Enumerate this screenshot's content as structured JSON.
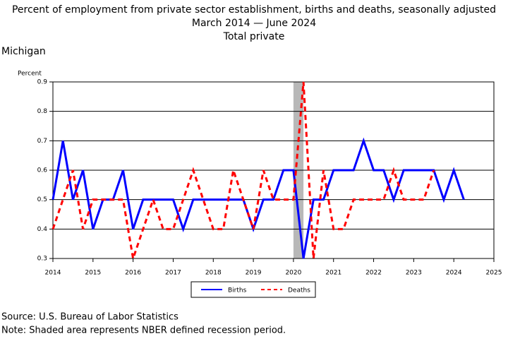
{
  "chart_data": {
    "type": "line",
    "title": [
      "Percent of employment from private sector establishment, births and deaths, seasonally adjusted",
      "March 2014 — June 2024",
      "Total private"
    ],
    "region": "Michigan",
    "ylabel": "Percent",
    "x": [
      2014,
      2014.25,
      2014.5,
      2014.75,
      2015,
      2015.25,
      2015.5,
      2015.75,
      2016,
      2016.25,
      2016.5,
      2016.75,
      2017,
      2017.25,
      2017.5,
      2017.75,
      2018,
      2018.25,
      2018.5,
      2018.75,
      2019,
      2019.25,
      2019.5,
      2019.75,
      2020,
      2020.25,
      2020.5,
      2020.75,
      2021,
      2021.25,
      2021.5,
      2021.75,
      2022,
      2022.25,
      2022.5,
      2022.75,
      2023,
      2023.25,
      2023.5,
      2023.75,
      2024,
      2024.25
    ],
    "series": [
      {
        "name": "Births",
        "color": "#0000ff",
        "dashed": false,
        "values": [
          0.5,
          0.7,
          0.5,
          0.6,
          0.4,
          0.5,
          0.5,
          0.6,
          0.4,
          0.5,
          0.5,
          0.5,
          0.5,
          0.4,
          0.5,
          0.5,
          0.5,
          0.5,
          0.5,
          0.5,
          0.4,
          0.5,
          0.5,
          0.6,
          0.6,
          0.3,
          0.5,
          0.5,
          0.6,
          0.6,
          0.6,
          0.7,
          0.6,
          0.6,
          0.5,
          0.6,
          0.6,
          0.6,
          0.6,
          0.5,
          0.6,
          0.5
        ]
      },
      {
        "name": "Deaths",
        "color": "#ff0000",
        "dashed": true,
        "values": [
          0.4,
          0.5,
          0.6,
          0.4,
          0.5,
          0.5,
          0.5,
          0.5,
          0.3,
          0.4,
          0.5,
          0.4,
          0.4,
          0.5,
          0.6,
          0.5,
          0.4,
          0.4,
          0.6,
          0.5,
          0.4,
          0.6,
          0.5,
          0.5,
          0.5,
          0.9,
          0.3,
          0.6,
          0.4,
          0.4,
          0.5,
          0.5,
          0.5,
          0.5,
          0.6,
          0.5,
          0.5,
          0.5,
          0.6,
          null,
          null,
          null
        ]
      }
    ],
    "recession": [
      2020,
      2020.25
    ],
    "xlim": [
      2014,
      2025
    ],
    "xticks": [
      2014,
      2015,
      2016,
      2017,
      2018,
      2019,
      2020,
      2021,
      2022,
      2023,
      2024,
      2025
    ],
    "ylim": [
      0.3,
      0.9
    ],
    "yticks": [
      0.3,
      0.4,
      0.5,
      0.6,
      0.7,
      0.8,
      0.9
    ],
    "grid": true,
    "source": "Source: U.S. Bureau of Labor Statistics",
    "note": "Note: Shaded area represents NBER defined recession period."
  }
}
